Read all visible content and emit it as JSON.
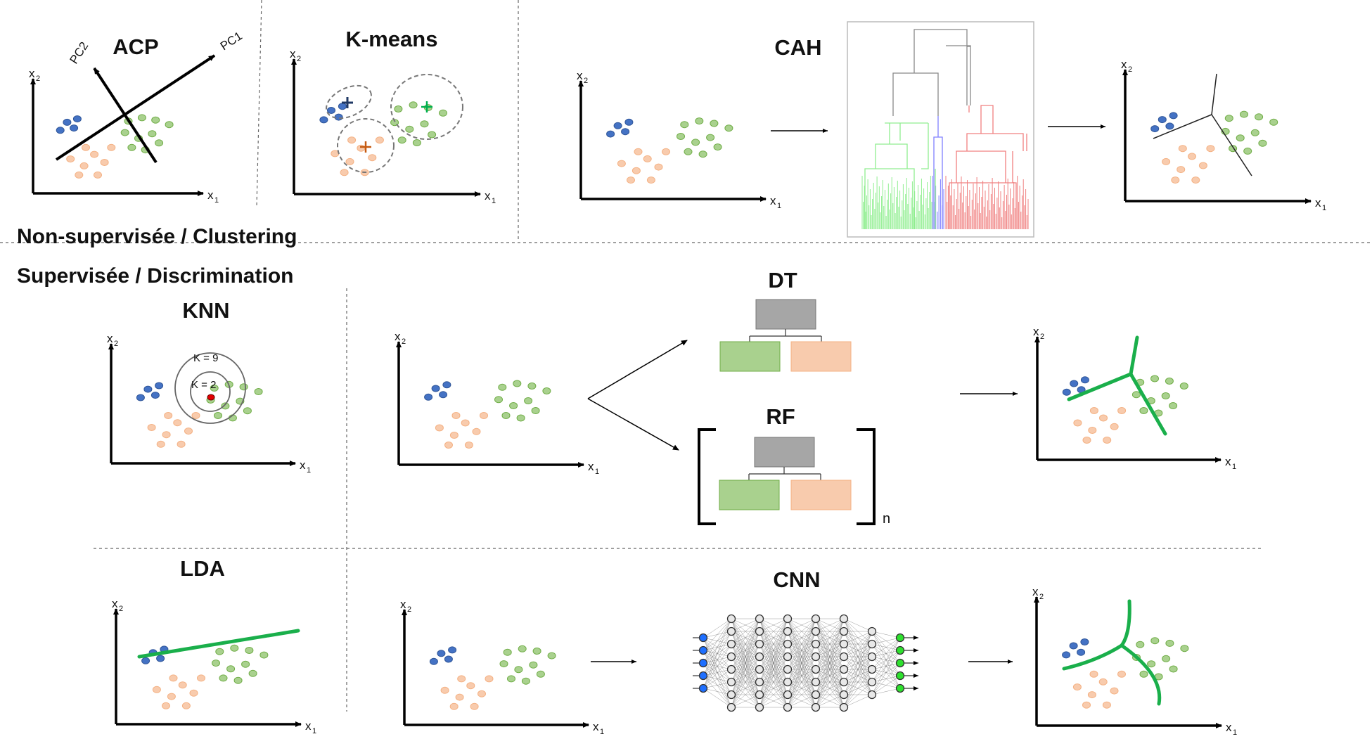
{
  "sections": {
    "unsupervised": "Non-supervisée / Clustering",
    "supervised": "Supervisée / Discrimination"
  },
  "titles": {
    "acp": "ACP",
    "kmeans": "K-means",
    "cah": "CAH",
    "knn": "KNN",
    "dt": "DT",
    "rf": "RF",
    "lda": "LDA",
    "cnn": "CNN"
  },
  "axes": {
    "x": "x",
    "x_sub": "1",
    "y": "x",
    "y_sub": "2"
  },
  "acp_axes": {
    "pc1": "PC1",
    "pc2": "PC2"
  },
  "knn_labels": {
    "k9": "K = 9",
    "k2": "K = 2"
  },
  "rf_label": "n",
  "colors": {
    "blue": "#4472C4",
    "green": "#A9D18E",
    "orange": "#F8CBAD",
    "green_stroke": "#70AD47",
    "orange_stroke": "#F4B183",
    "boundary": "#1AAF4B",
    "node_gray": "#A6A6A6",
    "dendro_green": "#90EE90",
    "dendro_blue": "#8080FF",
    "dendro_red": "#F08080",
    "input_node": "#1E6FFF",
    "output_node": "#2EE02E"
  },
  "icons": [
    "scatter-plot",
    "decision-tree-icon",
    "random-forest-icon",
    "dendrogram",
    "neural-network-icon",
    "arrow-icon"
  ]
}
